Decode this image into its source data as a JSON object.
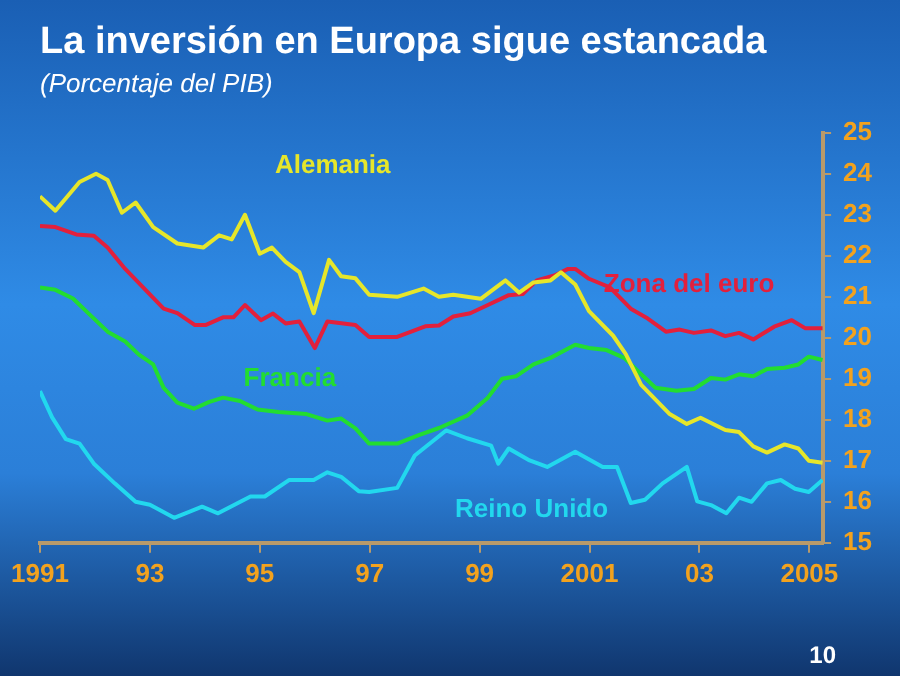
{
  "chart_data": {
    "type": "line",
    "title": "La inversión en Europa sigue estancada",
    "subtitle": "(Porcentaje del PIB)",
    "series": [
      {
        "name": "Alemania",
        "color": "#e6e62a",
        "x": [
          1991.0,
          1991.28,
          1991.72,
          1992.02,
          1992.23,
          1992.49,
          1992.74,
          1993.06,
          1993.5,
          1993.97,
          1994.26,
          1994.49,
          1994.73,
          1995.0,
          1995.22,
          1995.47,
          1995.72,
          1995.98,
          1996.26,
          1996.48,
          1996.74,
          1996.99,
          1997.5,
          1997.98,
          1998.26,
          1998.52,
          1999.02,
          1999.47,
          1999.72,
          1999.98,
          2000.29,
          2000.48,
          2000.74,
          2000.99,
          2001.43,
          2001.66,
          2001.94,
          2002.45,
          2002.77,
          2003.02,
          2003.47,
          2003.72,
          2003.98,
          2004.23,
          2004.55,
          2004.8,
          2004.99,
          2005.24
        ],
        "values": [
          23.45,
          23.1,
          23.8,
          24.0,
          23.85,
          23.05,
          23.3,
          22.7,
          22.3,
          22.2,
          22.5,
          22.4,
          23.0,
          22.05,
          22.2,
          21.85,
          21.6,
          20.6,
          21.9,
          21.5,
          21.45,
          21.05,
          21.0,
          21.2,
          21.0,
          21.05,
          20.95,
          21.4,
          21.1,
          21.35,
          21.4,
          21.6,
          21.3,
          20.65,
          20.05,
          19.6,
          18.85,
          18.15,
          17.9,
          18.05,
          17.75,
          17.7,
          17.35,
          17.2,
          17.4,
          17.3,
          17.0,
          16.95
        ]
      },
      {
        "name": "Zona del euro",
        "color": "#e2203c",
        "x": [
          1991.0,
          1991.28,
          1991.66,
          1991.98,
          1992.23,
          1992.55,
          1993.25,
          1993.5,
          1993.82,
          1994.01,
          1994.33,
          1994.52,
          1994.73,
          1995.02,
          1995.24,
          1995.47,
          1995.72,
          1996.0,
          1996.23,
          1996.74,
          1996.99,
          1997.5,
          1998.01,
          1998.26,
          1998.52,
          1998.83,
          1999.15,
          1999.53,
          1999.79,
          2000.04,
          2000.36,
          2000.61,
          2000.74,
          2000.99,
          2001.37,
          2001.75,
          2002.06,
          2002.39,
          2002.64,
          2002.9,
          2003.21,
          2003.47,
          2003.72,
          2003.98,
          2004.36,
          2004.68,
          2004.93,
          2005.24
        ],
        "values": [
          22.73,
          22.7,
          22.52,
          22.49,
          22.2,
          21.68,
          20.71,
          20.6,
          20.31,
          20.31,
          20.5,
          20.5,
          20.8,
          20.43,
          20.59,
          20.35,
          20.4,
          19.75,
          20.4,
          20.31,
          20.02,
          20.02,
          20.28,
          20.3,
          20.52,
          20.6,
          20.8,
          21.04,
          21.07,
          21.4,
          21.52,
          21.68,
          21.68,
          21.44,
          21.23,
          20.71,
          20.47,
          20.15,
          20.2,
          20.12,
          20.18,
          20.04,
          20.12,
          19.96,
          20.27,
          20.43,
          20.23,
          20.23
        ]
      },
      {
        "name": "Francia",
        "color": "#22dd30",
        "x": [
          1991.0,
          1991.28,
          1991.6,
          1991.91,
          1992.23,
          1992.55,
          1992.8,
          1993.06,
          1993.25,
          1993.5,
          1993.8,
          1994.07,
          1994.33,
          1994.64,
          1994.96,
          1995.34,
          1995.85,
          1996.23,
          1996.48,
          1996.74,
          1996.99,
          1997.5,
          1997.88,
          1998.26,
          1998.77,
          1999.15,
          1999.41,
          1999.66,
          1999.98,
          2000.29,
          2000.74,
          2000.99,
          2001.31,
          2001.63,
          2001.94,
          2002.2,
          2002.58,
          2002.9,
          2003.21,
          2003.47,
          2003.72,
          2003.98,
          2004.23,
          2004.55,
          2004.8,
          2004.99,
          2005.24
        ],
        "values": [
          21.23,
          21.17,
          20.96,
          20.56,
          20.15,
          19.91,
          19.59,
          19.35,
          18.78,
          18.42,
          18.27,
          18.43,
          18.54,
          18.46,
          18.25,
          18.19,
          18.14,
          17.98,
          18.03,
          17.79,
          17.42,
          17.42,
          17.62,
          17.8,
          18.1,
          18.54,
          19.0,
          19.06,
          19.35,
          19.51,
          19.83,
          19.75,
          19.7,
          19.51,
          19.11,
          18.78,
          18.71,
          18.75,
          19.02,
          18.98,
          19.11,
          19.06,
          19.24,
          19.27,
          19.35,
          19.54,
          19.46
        ]
      },
      {
        "name": "Reino Unido",
        "color": "#22d8ee",
        "x": [
          1991.0,
          1991.22,
          1991.47,
          1991.72,
          1991.98,
          1992.36,
          1992.74,
          1993.0,
          1993.44,
          1993.95,
          1994.24,
          1994.83,
          1995.09,
          1995.53,
          1995.98,
          1996.23,
          1996.48,
          1996.8,
          1996.99,
          1997.5,
          1997.82,
          1998.39,
          1998.77,
          1999.21,
          1999.34,
          1999.53,
          1999.91,
          2000.23,
          2000.74,
          2001.24,
          2001.5,
          2001.75,
          2002.01,
          2002.33,
          2002.77,
          2002.96,
          2003.21,
          2003.49,
          2003.72,
          2003.95,
          2004.23,
          2004.48,
          2004.74,
          2004.99,
          2005.24
        ],
        "values": [
          18.7,
          18.06,
          17.53,
          17.42,
          16.93,
          16.45,
          16.0,
          15.93,
          15.61,
          15.88,
          15.72,
          16.13,
          16.13,
          16.53,
          16.53,
          16.72,
          16.61,
          16.26,
          16.24,
          16.34,
          17.13,
          17.74,
          17.55,
          17.37,
          16.93,
          17.3,
          17.01,
          16.85,
          17.22,
          16.85,
          16.85,
          15.97,
          16.05,
          16.45,
          16.85,
          16.01,
          15.92,
          15.72,
          16.1,
          16.0,
          16.45,
          16.53,
          16.32,
          16.24,
          16.53
        ]
      }
    ],
    "xlim": [
      1991,
      2005.25
    ],
    "xticks": [
      1991,
      {
        "value": 1993,
        "label": "93"
      },
      {
        "value": 1995,
        "label": "95"
      },
      {
        "value": 1997,
        "label": "97"
      },
      {
        "value": 1999,
        "label": "99"
      },
      2001,
      {
        "value": 2003,
        "label": "03"
      },
      2005
    ],
    "ylim": [
      15,
      25
    ],
    "yticks": [
      15,
      16,
      17,
      18,
      19,
      20,
      21,
      22,
      23,
      24,
      25
    ],
    "grid": false,
    "legend": false,
    "marker": "none",
    "line_style": "solid",
    "annotations": [
      "10"
    ]
  }
}
